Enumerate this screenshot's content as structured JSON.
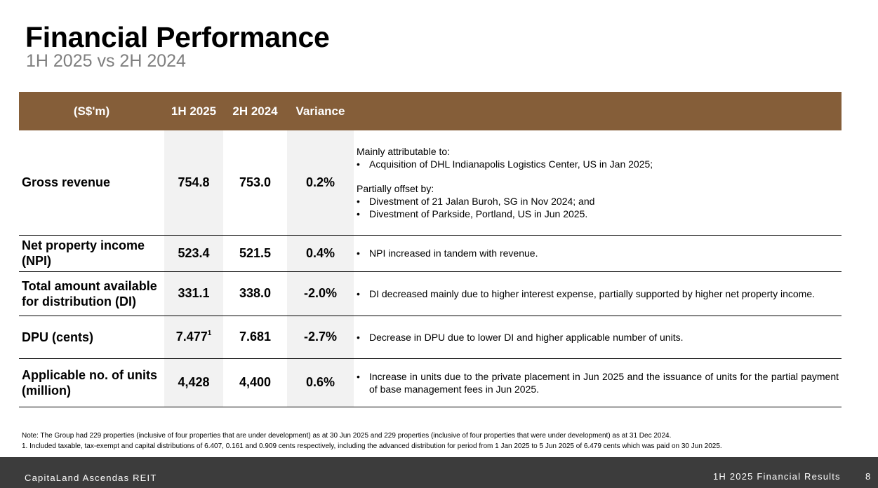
{
  "header": {
    "title": "Financial Performance",
    "subtitle": "1H 2025 vs 2H 2024"
  },
  "table": {
    "columns": [
      "(S$'m)",
      "1H 2025",
      "2H 2024",
      "Variance",
      ""
    ],
    "rows": [
      {
        "label": "Gross revenue",
        "h1_2025": "754.8",
        "h2_2024": "753.0",
        "variance": "0.2%",
        "comment_intro": "Mainly attributable to:",
        "comment_bullets_a": [
          "Acquisition of DHL Indianapolis Logistics Center, US in Jan 2025;"
        ],
        "comment_intro2": "Partially offset by:",
        "comment_bullets_b": [
          "Divestment of 21 Jalan Buroh, SG in Nov 2024; and",
          "Divestment of Parkside, Portland, US in Jun 2025."
        ]
      },
      {
        "label": "Net property income (NPI)",
        "h1_2025": "523.4",
        "h2_2024": "521.5",
        "variance": "0.4%",
        "comment": "NPI increased in tandem with revenue."
      },
      {
        "label": "Total amount available for distribution (DI)",
        "h1_2025": "331.1",
        "h2_2024": "338.0",
        "variance": "-2.0%",
        "comment": "DI decreased mainly due to higher interest expense, partially supported by higher net property income."
      },
      {
        "label": "DPU (cents)",
        "h1_2025": "7.477",
        "h1_2025_footnote": "1",
        "h2_2024": "7.681",
        "variance": "-2.7%",
        "comment": "Decrease in DPU due to lower DI and higher applicable number of units."
      },
      {
        "label": "Applicable no. of units (million)",
        "h1_2025": "4,428",
        "h2_2024": "4,400",
        "variance": "0.6%",
        "comment": "Increase in units due to the private placement in Jun 2025 and the issuance of units for the partial payment of base management fees in Jun 2025."
      }
    ]
  },
  "notes": {
    "note": "Note: The Group had 229 properties (inclusive of four properties that are under development) as at 30 Jun 2025 and 229 properties (inclusive of four properties that were under development) as at 31 Dec 2024.",
    "footnote1": "1. Included taxable, tax-exempt and capital distributions of 6.407, 0.161 and 0.909 cents respectively, including the advanced distribution for period from 1 Jan 2025 to 5 Jun 2025 of 6.479 cents which was paid on 30 Jun 2025."
  },
  "footer": {
    "company": "CapitaLand Ascendas REIT",
    "report": "1H 2025 Financial Results",
    "page": "8"
  },
  "colors": {
    "header_brown": "#855e39",
    "shade": "#f2f2f2",
    "footer_bg": "#3c3c3c",
    "subtitle_grey": "#7f7f7f"
  }
}
